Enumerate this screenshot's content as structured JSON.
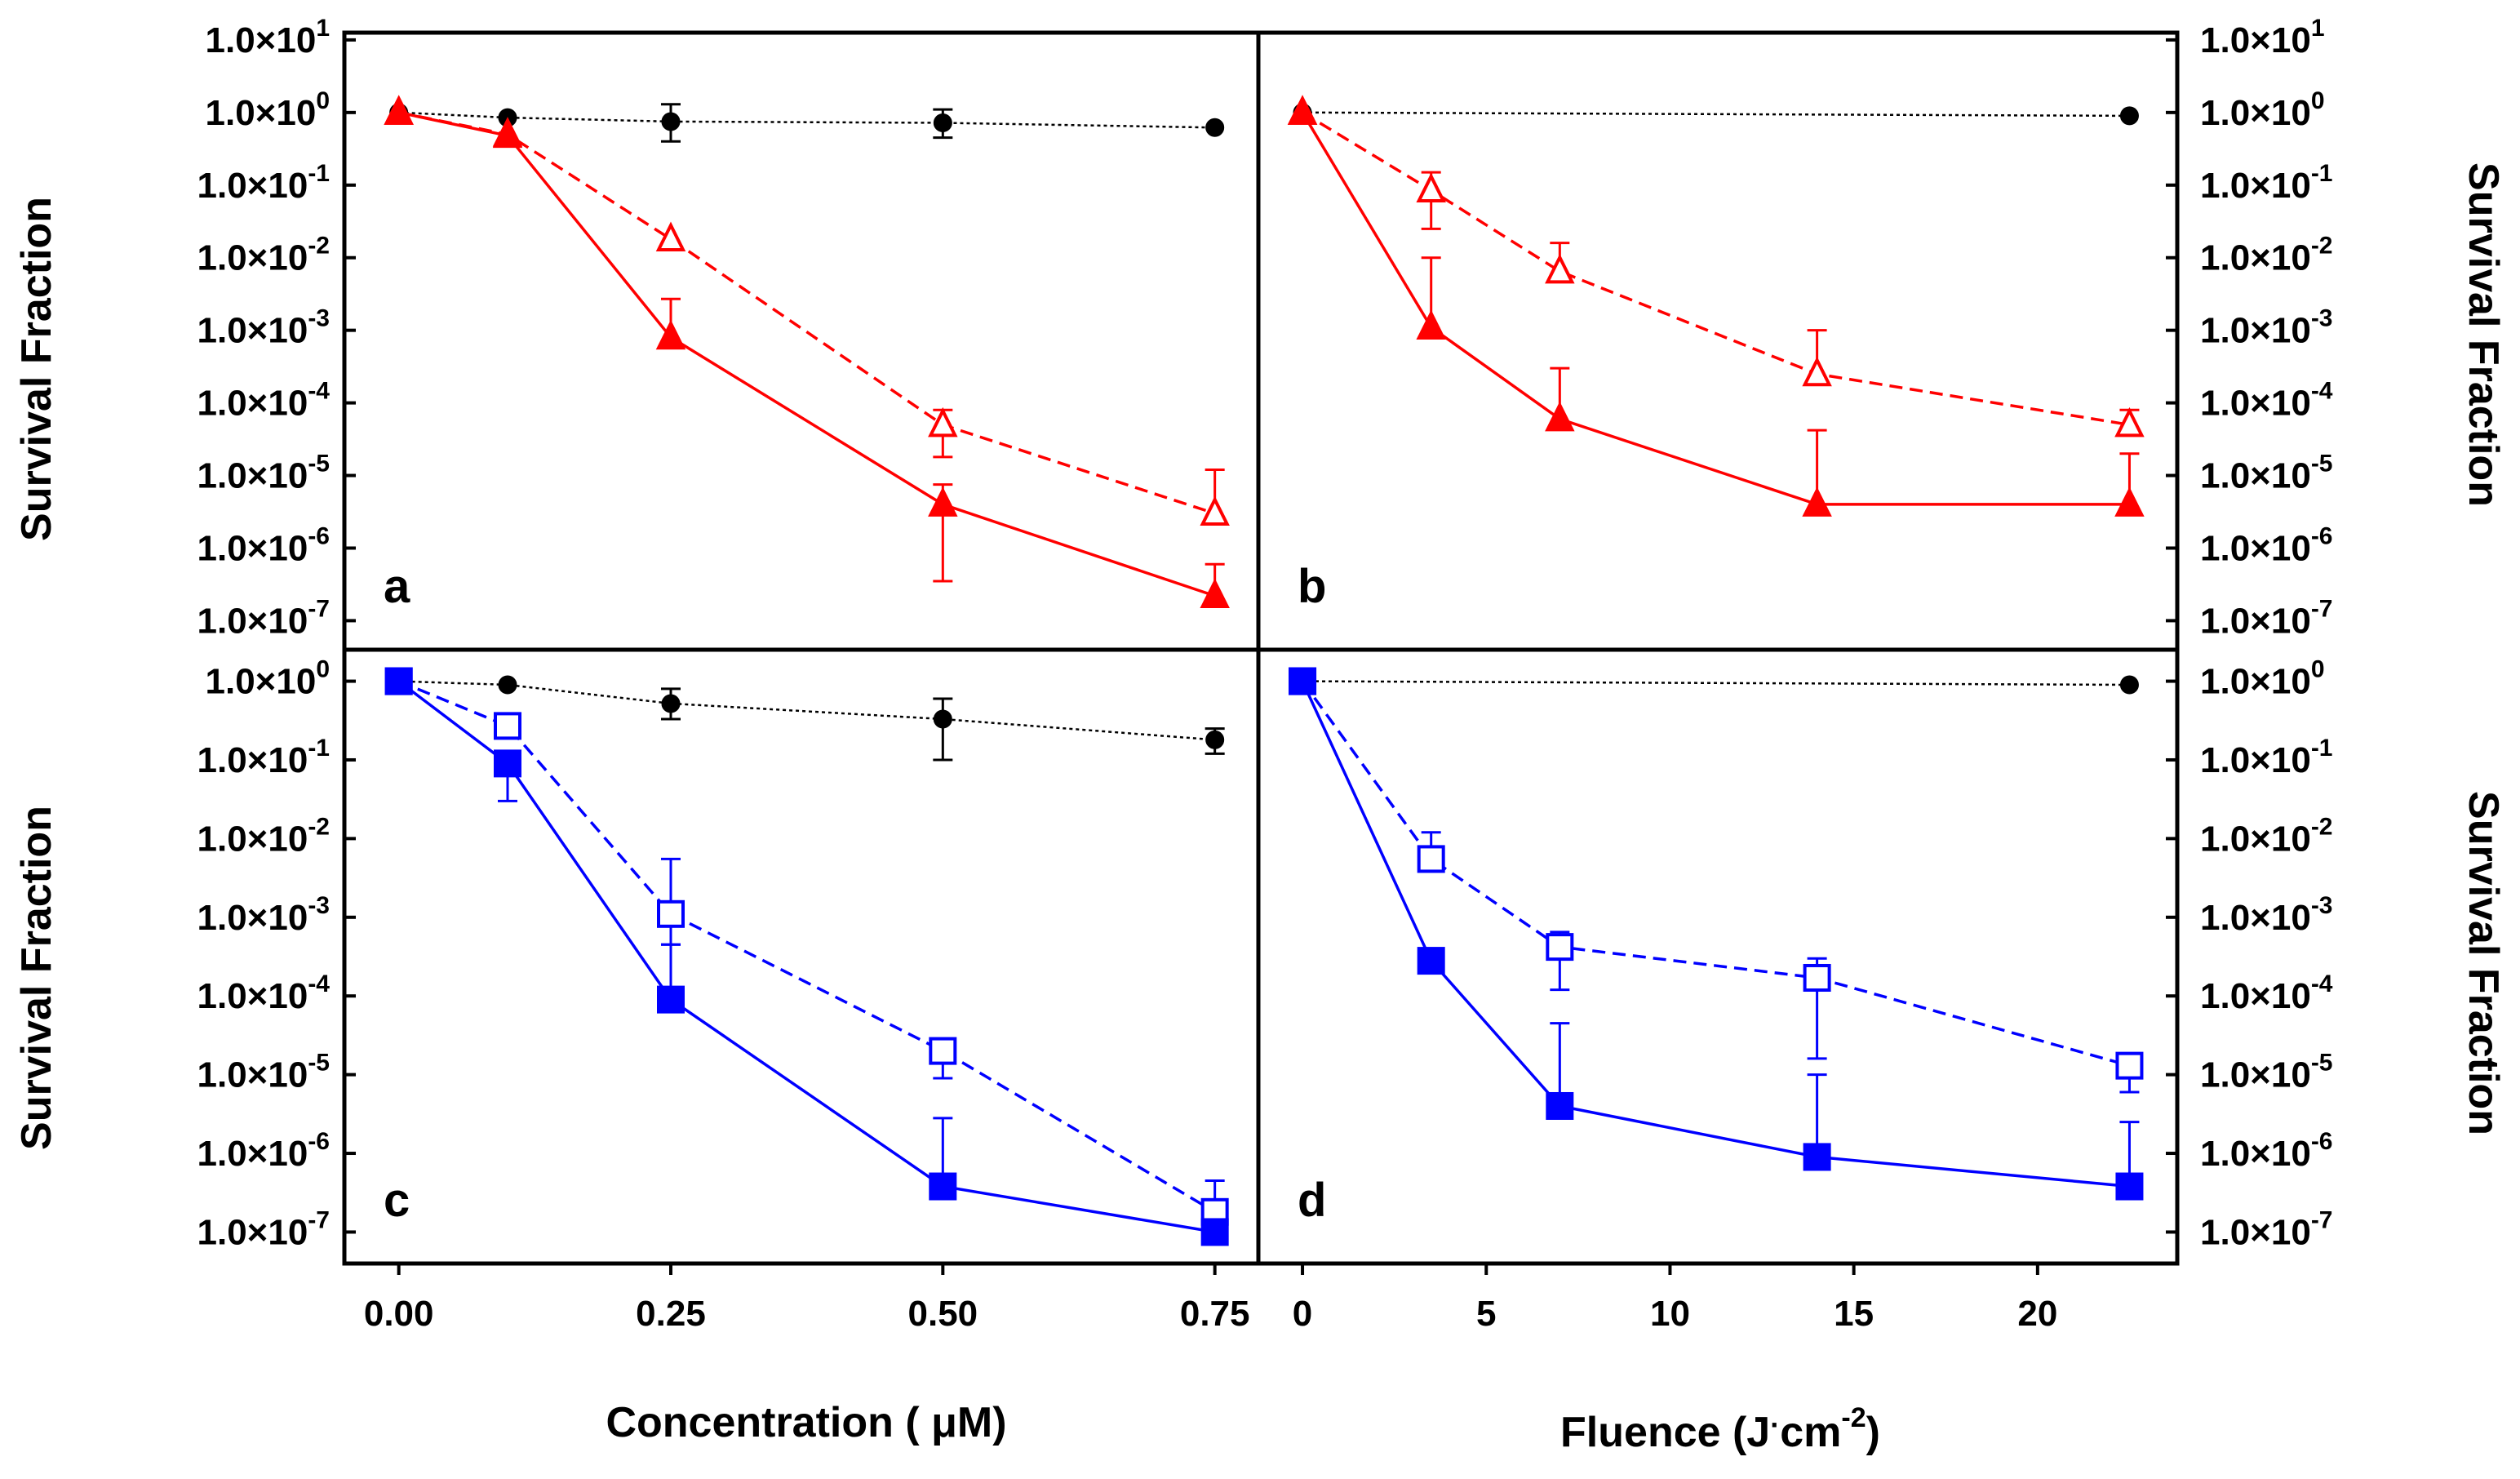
{
  "colors": {
    "red": "#ff0000",
    "blue": "#0000ff",
    "black": "#000000"
  },
  "ylabel": "Survival Fraction",
  "xlabel_concentration": "Concentration ( μM)",
  "xlabel_fluence_main": "Fluence (J",
  "xlabel_fluence_dot": "·",
  "xlabel_fluence_cm": "cm",
  "xlabel_fluence_exp": "-2",
  "xlabel_fluence_close": ")",
  "y_ticks": [
    {
      "exp": 1,
      "mant": "1.0×10",
      "sup": "1"
    },
    {
      "exp": 0,
      "mant": "1.0×10",
      "sup": "0"
    },
    {
      "exp": -1,
      "mant": "1.0×10",
      "sup": "-1"
    },
    {
      "exp": -2,
      "mant": "1.0×10",
      "sup": "-2"
    },
    {
      "exp": -3,
      "mant": "1.0×10",
      "sup": "-3"
    },
    {
      "exp": -4,
      "mant": "1.0×10",
      "sup": "-4"
    },
    {
      "exp": -5,
      "mant": "1.0×10",
      "sup": "-5"
    },
    {
      "exp": -6,
      "mant": "1.0×10",
      "sup": "-6"
    },
    {
      "exp": -7,
      "mant": "1.0×10",
      "sup": "-7"
    }
  ],
  "y_ticks_lower": [
    {
      "exp": 0,
      "mant": "1.0×10",
      "sup": "0"
    },
    {
      "exp": -1,
      "mant": "1.0×10",
      "sup": "-1"
    },
    {
      "exp": -2,
      "mant": "1.0×10",
      "sup": "-2"
    },
    {
      "exp": -3,
      "mant": "1.0×10",
      "sup": "-3"
    },
    {
      "exp": -4,
      "mant": "1.0×10",
      "sup": "-4"
    },
    {
      "exp": -5,
      "mant": "1.0×10",
      "sup": "-5"
    },
    {
      "exp": -6,
      "mant": "1.0×10",
      "sup": "-6"
    },
    {
      "exp": -7,
      "mant": "1.0×10",
      "sup": "-7"
    }
  ],
  "chart_data": [
    {
      "panel": "a",
      "type": "scatter",
      "xscale": "linear",
      "yscale": "log",
      "xlim": [
        -0.05,
        0.79
      ],
      "ylim_log10": [
        -7.4,
        1.1
      ],
      "xlabel": "Concentration ( μM)",
      "ylabel": "Survival Fraction",
      "series": [
        {
          "name": "control",
          "color": "black",
          "marker": "circle",
          "fill": true,
          "line": "dotted",
          "x": [
            0,
            0.1,
            0.25,
            0.5,
            0.75
          ],
          "y": [
            1,
            0.85,
            0.75,
            0.72,
            0.62
          ],
          "err_up": [
            null,
            null,
            1.3,
            1.1,
            null
          ],
          "err_down": [
            null,
            null,
            0.4,
            0.45,
            null
          ]
        },
        {
          "name": "open triangle",
          "color": "red",
          "marker": "triangle",
          "fill": false,
          "line": "dashed",
          "x": [
            0,
            0.1,
            0.25,
            0.5,
            0.75
          ],
          "y": [
            1,
            0.5,
            0.018,
            5e-05,
            3e-06
          ],
          "err_up": [
            null,
            null,
            null,
            8e-05,
            1.2e-05
          ],
          "err_down": [
            null,
            null,
            null,
            1.8e-05,
            null
          ]
        },
        {
          "name": "filled triangle",
          "color": "red",
          "marker": "triangle",
          "fill": true,
          "line": "solid",
          "x": [
            0,
            0.1,
            0.25,
            0.5,
            0.75
          ],
          "y": [
            1,
            0.48,
            0.0008,
            4e-06,
            2.2e-07
          ],
          "err_up": [
            null,
            null,
            0.0027,
            7.5e-06,
            6e-07
          ],
          "err_down": [
            null,
            null,
            null,
            3.5e-07,
            null
          ]
        }
      ]
    },
    {
      "panel": "b",
      "type": "scatter",
      "xscale": "linear",
      "yscale": "log",
      "xlim": [
        -1.2,
        23.8
      ],
      "ylim_log10": [
        -7.4,
        1.1
      ],
      "xlabel": "Fluence (J·cm-2)",
      "ylabel": "Survival Fraction",
      "series": [
        {
          "name": "control",
          "color": "black",
          "marker": "circle",
          "fill": true,
          "line": "dotted",
          "x": [
            0,
            22.5
          ],
          "y": [
            1,
            0.9
          ],
          "err_up": [
            null,
            null
          ],
          "err_down": [
            null,
            null
          ]
        },
        {
          "name": "open triangle",
          "color": "red",
          "marker": "triangle",
          "fill": false,
          "line": "dashed",
          "x": [
            0,
            3.5,
            7,
            14,
            22.5
          ],
          "y": [
            1,
            0.085,
            0.0065,
            0.00025,
            5e-05
          ],
          "err_up": [
            null,
            0.15,
            0.016,
            0.001,
            8e-05
          ],
          "err_down": [
            null,
            0.025,
            null,
            null,
            null
          ]
        },
        {
          "name": "filled triangle",
          "color": "red",
          "marker": "triangle",
          "fill": true,
          "line": "solid",
          "x": [
            0,
            3.5,
            7,
            14,
            22.5
          ],
          "y": [
            1,
            0.0011,
            6e-05,
            4e-06,
            4e-06
          ],
          "err_up": [
            null,
            0.01,
            0.0003,
            4.2e-05,
            2e-05
          ],
          "err_down": [
            null,
            null,
            null,
            null,
            null
          ]
        }
      ]
    },
    {
      "panel": "c",
      "type": "scatter",
      "xscale": "linear",
      "yscale": "log",
      "xlim": [
        -0.05,
        0.79
      ],
      "ylim_log10": [
        -7.4,
        0.4
      ],
      "xlabel": "Concentration ( μM)",
      "ylabel": "Survival Fraction",
      "series": [
        {
          "name": "control",
          "color": "black",
          "marker": "circle",
          "fill": true,
          "line": "dotted",
          "x": [
            0,
            0.1,
            0.25,
            0.5,
            0.75
          ],
          "y": [
            1,
            0.9,
            0.52,
            0.33,
            0.18
          ],
          "err_up": [
            null,
            null,
            0.8,
            0.6,
            0.25
          ],
          "err_down": [
            null,
            null,
            0.33,
            0.1,
            0.12
          ]
        },
        {
          "name": "open square",
          "color": "blue",
          "marker": "square",
          "fill": false,
          "line": "dashed",
          "x": [
            0,
            0.1,
            0.25,
            0.5,
            0.75
          ],
          "y": [
            1,
            0.27,
            0.0011,
            2e-05,
            1.8e-07
          ],
          "err_up": [
            null,
            null,
            0.0055,
            null,
            4.5e-07
          ],
          "err_down": [
            null,
            null,
            0.00045,
            9e-06,
            null
          ]
        },
        {
          "name": "filled square",
          "color": "blue",
          "marker": "square",
          "fill": true,
          "line": "solid",
          "x": [
            0,
            0.1,
            0.25,
            0.5,
            0.75
          ],
          "y": [
            1,
            0.09,
            9e-05,
            3.8e-07,
            1e-07
          ],
          "err_up": [
            null,
            null,
            0.00045,
            2.8e-06,
            null
          ],
          "err_down": [
            null,
            0.03,
            null,
            null,
            null
          ]
        }
      ]
    },
    {
      "panel": "d",
      "type": "scatter",
      "xscale": "linear",
      "yscale": "log",
      "xlim": [
        -1.2,
        23.8
      ],
      "ylim_log10": [
        -7.4,
        0.4
      ],
      "xlabel": "Fluence (J·cm-2)",
      "ylabel": "Survival Fraction",
      "series": [
        {
          "name": "control",
          "color": "black",
          "marker": "circle",
          "fill": true,
          "line": "dotted",
          "x": [
            0,
            22.5
          ],
          "y": [
            1,
            0.9
          ],
          "err_up": [
            null,
            null
          ],
          "err_down": [
            null,
            null
          ]
        },
        {
          "name": "open square",
          "color": "blue",
          "marker": "square",
          "fill": false,
          "line": "dashed",
          "x": [
            0,
            3.5,
            7,
            14,
            22.5
          ],
          "y": [
            1,
            0.0055,
            0.00042,
            0.00017,
            1.3e-05
          ],
          "err_up": [
            null,
            0.012,
            0.00065,
            0.0003,
            null
          ],
          "err_down": [
            null,
            null,
            0.00012,
            1.6e-05,
            6e-06
          ]
        },
        {
          "name": "filled square",
          "color": "blue",
          "marker": "square",
          "fill": true,
          "line": "solid",
          "x": [
            0,
            3.5,
            7,
            14,
            22.5
          ],
          "y": [
            1,
            0.00028,
            4e-06,
            9e-07,
            3.8e-07
          ],
          "err_up": [
            null,
            null,
            4.5e-05,
            1e-05,
            2.5e-06
          ],
          "err_down": [
            null,
            null,
            null,
            null,
            null
          ]
        }
      ]
    }
  ],
  "x_ticks_concentration": [
    "0.00",
    "0.25",
    "0.50",
    "0.75"
  ],
  "x_ticks_fluence": [
    "0",
    "5",
    "10",
    "15",
    "20"
  ]
}
